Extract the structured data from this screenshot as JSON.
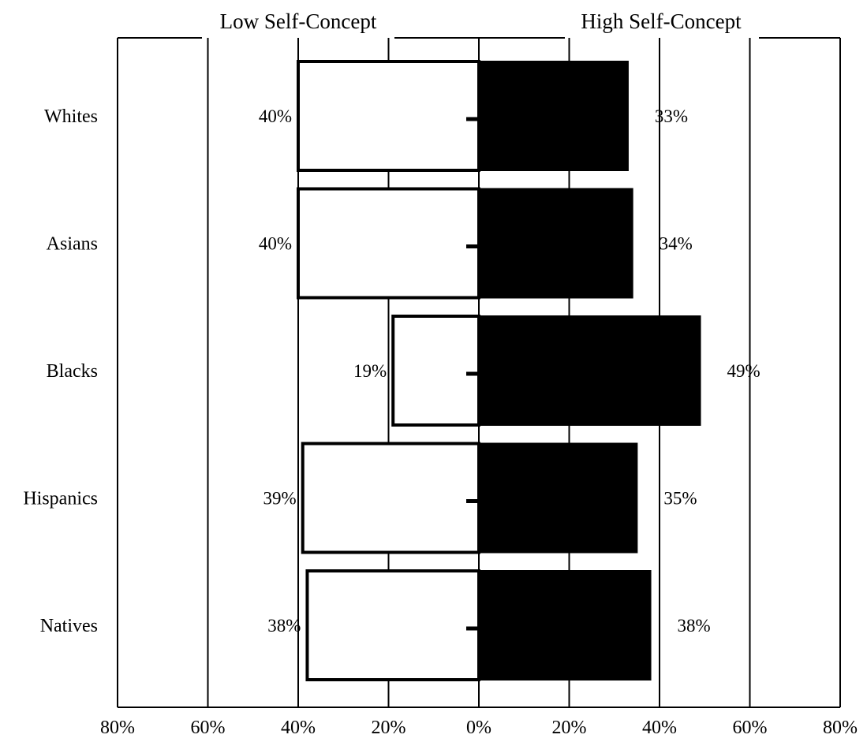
{
  "chart_data": {
    "type": "bar",
    "orientation": "diverging-horizontal",
    "title": "",
    "headers": {
      "left": "Low Self-Concept",
      "right": "High Self-Concept"
    },
    "categories": [
      "Whites",
      "Asians",
      "Blacks",
      "Hispanics",
      "Natives"
    ],
    "series": [
      {
        "name": "Low Self-Concept",
        "direction": "left",
        "fill": "#ffffff",
        "values": [
          40,
          40,
          19,
          39,
          38
        ],
        "labels": [
          "40%",
          "40%",
          "19%",
          "39%",
          "38%"
        ]
      },
      {
        "name": "High Self-Concept",
        "direction": "right",
        "fill": "#000000",
        "values": [
          33,
          34,
          49,
          35,
          38
        ],
        "labels": [
          "33%",
          "34%",
          "49%",
          "35%",
          "38%"
        ]
      }
    ],
    "xlim": [
      -80,
      80
    ],
    "x_ticks": [
      -80,
      -60,
      -40,
      -20,
      0,
      20,
      40,
      60,
      80
    ],
    "x_tick_labels": [
      "80%",
      "60%",
      "40%",
      "20%",
      "0%",
      "20%",
      "40%",
      "60%",
      "80%"
    ],
    "xlabel": "",
    "ylabel": "",
    "grid": "vertical",
    "legend": "none",
    "colors": {
      "low": "#ffffff",
      "high": "#000000",
      "axis": "#000000"
    }
  }
}
